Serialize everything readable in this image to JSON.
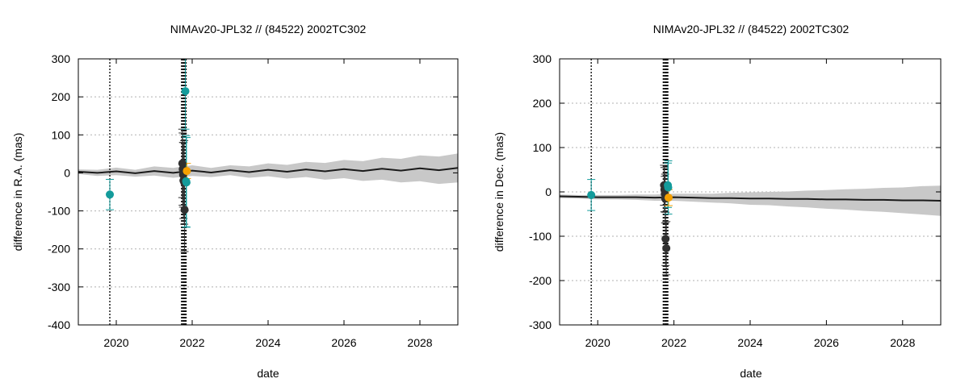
{
  "colors": {
    "model": "#1a1a1a",
    "band": "#c8c8c8",
    "gray_obs": "#303030",
    "teal_obs": "#139b9b",
    "orange_obs": "#f5a000"
  },
  "chart_data": [
    {
      "type": "scatter",
      "title": "NIMAv20-JPL32 // (84522) 2002TC302",
      "xlabel": "date",
      "ylabel": "difference in R.A. (mas)",
      "xlim": [
        2019.0,
        2029.0
      ],
      "ylim": [
        -400,
        300
      ],
      "x_ticks": [
        2020,
        2022,
        2024,
        2026,
        2028
      ],
      "y_ticks": [
        -400,
        -300,
        -200,
        -100,
        0,
        100,
        200,
        300
      ],
      "grid": "horizontal dotted",
      "vlines": [
        2019.83,
        2021.72,
        2021.75,
        2021.78,
        2021.8,
        2021.82,
        2021.84
      ],
      "model_line": {
        "x": [
          2019.0,
          2019.5,
          2020.0,
          2020.5,
          2021.0,
          2021.5,
          2022.0,
          2022.5,
          2023.0,
          2023.5,
          2024.0,
          2024.5,
          2025.0,
          2025.5,
          2026.0,
          2026.5,
          2027.0,
          2027.5,
          2028.0,
          2028.5,
          2029.0
        ],
        "y": [
          3,
          0,
          4,
          -1,
          5,
          0,
          6,
          1,
          7,
          2,
          8,
          3,
          9,
          4,
          10,
          5,
          11,
          6,
          12,
          7,
          13
        ],
        "band_half_width": [
          6,
          8,
          10,
          9,
          12,
          13,
          14,
          12,
          13,
          15,
          17,
          18,
          20,
          22,
          24,
          26,
          29,
          31,
          34,
          36,
          38
        ]
      },
      "series": [
        {
          "color": "gray",
          "x": [
            2021.74,
            2021.75,
            2021.76,
            2021.77,
            2021.79,
            2021.8
          ],
          "y": [
            25,
            10,
            -5,
            -20,
            -25,
            -97
          ],
          "err": [
            90,
            95,
            85,
            100,
            110,
            110
          ]
        },
        {
          "color": "teal",
          "x": [
            2019.83,
            2021.82,
            2021.84,
            2021.85
          ],
          "y": [
            -57,
            215,
            -22,
            -25
          ],
          "err": [
            40,
            100,
            120,
            118
          ]
        },
        {
          "color": "orange",
          "x": [
            2021.86
          ],
          "y": [
            5
          ],
          "err": [
            20
          ]
        }
      ]
    },
    {
      "type": "scatter",
      "title": "NIMAv20-JPL32 // (84522) 2002TC302",
      "xlabel": "date",
      "ylabel": "difference in Dec. (mas)",
      "xlim": [
        2019.0,
        2029.0
      ],
      "ylim": [
        -300,
        300
      ],
      "x_ticks": [
        2020,
        2022,
        2024,
        2026,
        2028
      ],
      "y_ticks": [
        -300,
        -200,
        -100,
        0,
        100,
        200,
        300
      ],
      "grid": "horizontal dotted",
      "vlines": [
        2019.83,
        2021.72,
        2021.75,
        2021.78,
        2021.8,
        2021.82,
        2021.84
      ],
      "model_line": {
        "x": [
          2019.0,
          2019.5,
          2020.0,
          2020.5,
          2021.0,
          2021.5,
          2022.0,
          2022.5,
          2023.0,
          2023.5,
          2024.0,
          2024.5,
          2025.0,
          2025.5,
          2026.0,
          2026.5,
          2027.0,
          2027.5,
          2028.0,
          2028.5,
          2029.0
        ],
        "y": [
          -10,
          -11,
          -12,
          -12,
          -12,
          -13,
          -12,
          -13,
          -14,
          -14,
          -15,
          -15,
          -16,
          -16,
          -17,
          -17,
          -18,
          -18,
          -19,
          -19,
          -20
        ],
        "band_half_width": [
          4,
          4,
          5,
          5,
          6,
          7,
          8,
          9,
          10,
          12,
          14,
          15,
          17,
          19,
          21,
          23,
          25,
          27,
          29,
          32,
          34
        ]
      },
      "series": [
        {
          "color": "gray",
          "x": [
            2021.74,
            2021.75,
            2021.76,
            2021.77,
            2021.78,
            2021.8
          ],
          "y": [
            15,
            5,
            -5,
            -15,
            -106,
            -127
          ],
          "err": [
            45,
            50,
            40,
            55,
            60,
            60
          ]
        },
        {
          "color": "teal",
          "x": [
            2019.83,
            2021.84,
            2021.85
          ],
          "y": [
            -7,
            15,
            10
          ],
          "err": [
            35,
            50,
            60
          ]
        },
        {
          "color": "orange",
          "x": [
            2021.86
          ],
          "y": [
            -13
          ],
          "err": [
            18
          ]
        }
      ]
    }
  ]
}
